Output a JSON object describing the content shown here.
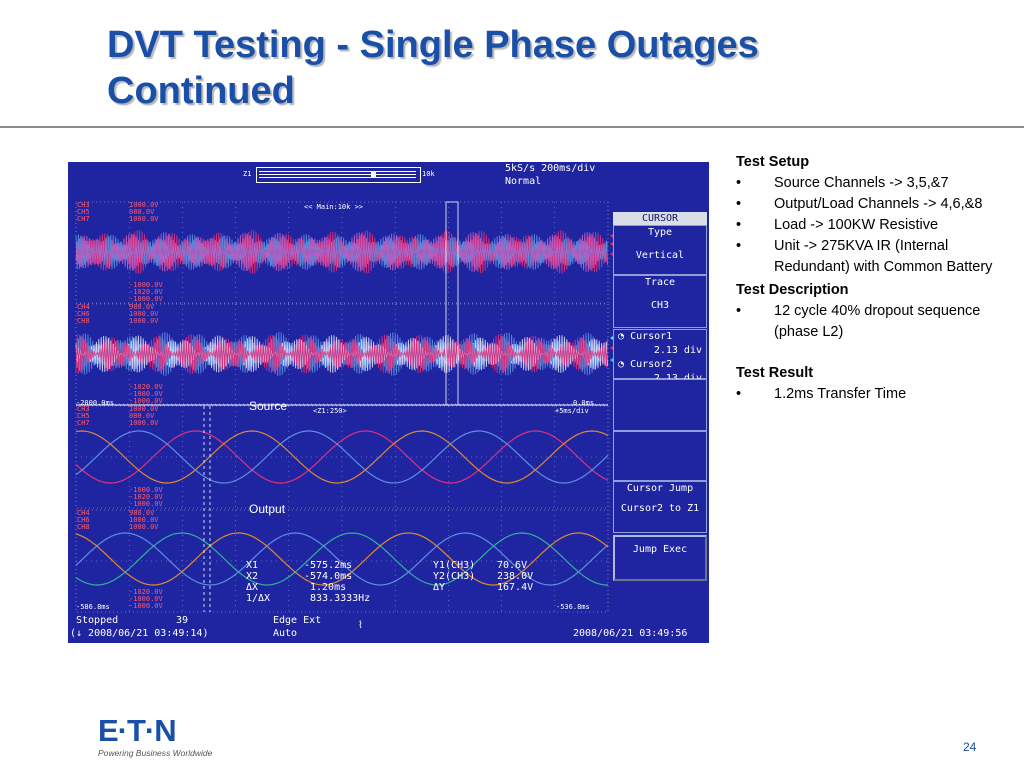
{
  "slide": {
    "title_line1": "DVT Testing - Single Phase Outages",
    "title_line2": "Continued",
    "page_number": "24"
  },
  "logo": {
    "wordmark": "E·T·N",
    "tagline": "Powering Business Worldwide"
  },
  "scope": {
    "top": {
      "zoom_left": "Z1",
      "zoom_right": "10k",
      "rate": "5kS/s 200ms/div",
      "mode": "Normal",
      "main_label": "<< Main:10k >>"
    },
    "zoom_label": "<Z1:250>",
    "zoom_right": "+5ms/div",
    "time_left_main": "-2000.0ms",
    "time_right_main": "0.0ms",
    "time_left_zoom": "-586.8ms",
    "time_right_zoom": "-536.8ms",
    "ch_blocks": [
      {
        "lines": [
          "CH3",
          "CH5",
          "CH7"
        ],
        "values": [
          "1000.0V",
          "980.0V",
          "1000.0V"
        ]
      },
      {
        "lines": [
          "CH4",
          "CH6",
          "CH8"
        ],
        "values": [
          "980.0V",
          "1000.0V",
          "1000.0V"
        ]
      }
    ],
    "ch_bottoms": [
      {
        "values": [
          "-1000.0V",
          "-1020.0V",
          "-1000.0V"
        ]
      },
      {
        "values": [
          "-1020.0V",
          "-1000.0V",
          "-1000.0V"
        ]
      }
    ],
    "overlay_source": "Source",
    "overlay_output": "Output",
    "cursor_readout": {
      "x1": "X1",
      "x1_val": "-575.2ms",
      "x2": "X2",
      "x2_val": "-574.0ms",
      "dx": "ΔX",
      "dx_val": "1.20ms",
      "inv": "1/ΔX",
      "inv_val": "833.3333Hz",
      "y1": "Y1(CH3)",
      "y1_val": "70.6V",
      "y2": "Y2(CH3)",
      "y2_val": "238.0V",
      "dy": "ΔY",
      "dy_val": "167.4V"
    },
    "status": {
      "state": "Stopped",
      "count": "39",
      "trigger": "Edge Ext",
      "coupling": "Auto",
      "start_time": "(↓ 2008/06/21 03:49:14)",
      "end_time": "2008/06/21 03:49:56"
    },
    "softkeys": {
      "header": "CURSOR",
      "type_label": "Type",
      "type_value": "Vertical",
      "trace_label": "Trace",
      "trace_value": "CH3",
      "cursor1_label": "Cursor1",
      "cursor1_value": "2.13 div",
      "cursor2_label": "Cursor2",
      "cursor2_value": "2.13 div",
      "jump_label": "Cursor Jump",
      "jump_value": "Cursor2 to Z1",
      "exec_label": "Jump Exec"
    },
    "colors": {
      "background": "#1f25a0",
      "magenta": "#e0307a",
      "blue_trace": "#5e8fe0",
      "orange": "#e08a30",
      "green": "#2fb39a"
    }
  },
  "notes": {
    "setup_heading": "Test Setup",
    "setup_items": [
      "Source Channels -> 3,5,&7",
      "Output/Load Channels -> 4,6,&8",
      "Load -> 100KW Resistive",
      "Unit -> 275KVA IR (Internal Redundant) with Common Battery"
    ],
    "description_heading": "Test Description",
    "description_items": [
      "12 cycle 40% dropout sequence (phase L2)"
    ],
    "result_heading": "Test Result",
    "result_items": [
      "1.2ms Transfer Time"
    ],
    "bullet": "•"
  }
}
